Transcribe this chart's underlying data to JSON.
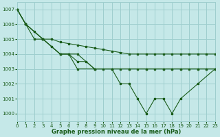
{
  "xlabel": "Graphe pression niveau de la mer (hPa)",
  "bg_color": "#c5e8e8",
  "grid_color": "#9ecece",
  "line_color": "#1a5c1a",
  "xlim": [
    0,
    23
  ],
  "ylim": [
    999.5,
    1007.5
  ],
  "yticks": [
    1000,
    1001,
    1002,
    1003,
    1004,
    1005,
    1006,
    1007
  ],
  "xticks": [
    0,
    1,
    2,
    3,
    4,
    5,
    6,
    7,
    8,
    9,
    10,
    11,
    12,
    13,
    14,
    15,
    16,
    17,
    18,
    19,
    20,
    21,
    22,
    23
  ],
  "series": [
    {
      "x": [
        0,
        1,
        2,
        3,
        4,
        5,
        6,
        7,
        8,
        9,
        10,
        11,
        12,
        13,
        14,
        15,
        16,
        17,
        18,
        19,
        20,
        21,
        22,
        23
      ],
      "y": [
        1007,
        1006,
        1005.5,
        1005,
        1005,
        1004.8,
        1004.7,
        1004.6,
        1004.5,
        1004.4,
        1004.3,
        1004.2,
        1004.1,
        1004,
        1004,
        1004,
        1004,
        1004,
        1004,
        1004,
        1004,
        1004,
        1004,
        1004
      ]
    },
    {
      "x": [
        0,
        1,
        2,
        3,
        4,
        5,
        6,
        7,
        8,
        9,
        10,
        11,
        12,
        13,
        14,
        15,
        16,
        17,
        18,
        19,
        20,
        21,
        22,
        23
      ],
      "y": [
        1007,
        1006,
        1005,
        1005,
        1004.5,
        1004,
        1004,
        1003.5,
        1003.5,
        1003,
        1003,
        1003,
        1003,
        1003,
        1003,
        1003,
        1003,
        1003,
        1003,
        1003,
        1003,
        1003,
        1003,
        1003
      ]
    },
    {
      "x": [
        0,
        1,
        3,
        5,
        7,
        9,
        11,
        13,
        15,
        17,
        18,
        19,
        21,
        22,
        23
      ],
      "y": [
        1007,
        1006,
        1005,
        1004,
        1004,
        1003,
        1003,
        1003,
        1003,
        1003,
        1003,
        1003,
        1003,
        1003,
        1003
      ]
    },
    {
      "x": [
        0,
        1,
        3,
        5,
        6,
        7,
        9,
        11,
        12,
        13,
        14,
        15,
        16,
        17,
        18,
        19,
        21,
        23
      ],
      "y": [
        1007,
        1006,
        1005,
        1004,
        1004,
        1003,
        1003,
        1003,
        1002,
        1002,
        1001,
        1000,
        1001,
        1001,
        1000,
        1001,
        1002,
        1003
      ]
    }
  ]
}
